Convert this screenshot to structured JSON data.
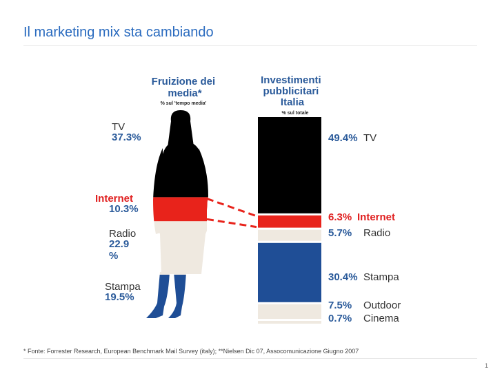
{
  "slide": {
    "title": "Il marketing mix sta cambiando",
    "footnote": "* Fonte: Forrester Research, European Benchmark Mail Survey (italy); **Nielsen Dic 07, Assocomunicazione Giugno 2007",
    "page_number": "1"
  },
  "chart_data": [
    {
      "type": "bar",
      "stacked": true,
      "title": "Fruizione dei media*",
      "subtitle": "% sul 'tempo media'",
      "categories": [
        "TV",
        "Internet",
        "Radio",
        "Stampa"
      ],
      "values": [
        37.3,
        10.3,
        22.9,
        19.5
      ],
      "value_labels": [
        "37.3%",
        "10.3%",
        "22.9 %",
        "19.5%"
      ],
      "colors": [
        "#000000",
        "#e8231b",
        "#efe9e0",
        "#1f4e96"
      ]
    },
    {
      "type": "bar",
      "stacked": true,
      "title": "Investimenti pubblicitari Italia",
      "subtitle": "% sul totale",
      "categories": [
        "TV",
        "Internet",
        "Radio",
        "Stampa",
        "Outdoor",
        "Cinema"
      ],
      "values": [
        49.4,
        6.3,
        5.7,
        30.4,
        7.5,
        0.7
      ],
      "value_labels": [
        "49.4%",
        "6.3%",
        "5.7%",
        "30.4%",
        "7.5%",
        "0.7%"
      ],
      "colors": [
        "#000000",
        "#e8231b",
        "#efe9e0",
        "#1f4e96",
        "#efe9e0",
        "#efe9e0"
      ]
    }
  ]
}
